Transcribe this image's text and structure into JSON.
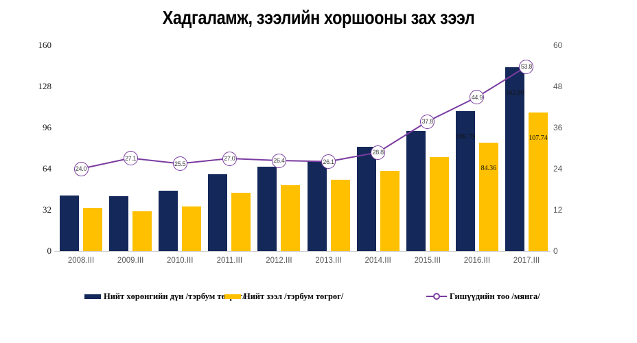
{
  "title": "Хадгаламж, зээлийн хоршооны зах зээл",
  "chart_data": {
    "type": "bar+line",
    "title": "Хадгаламж, зээлийн хоршооны зах зээл",
    "categories": [
      "2008.III",
      "2009.III",
      "2010.III",
      "2011.III",
      "2012.III",
      "2013.III",
      "2014.III",
      "2015.III",
      "2016.III",
      "2017.III"
    ],
    "left_axis": {
      "ticks": [
        0,
        32,
        64,
        96,
        128,
        160
      ],
      "max": 160,
      "min": 0
    },
    "right_axis": {
      "ticks": [
        0,
        12,
        24,
        36,
        48,
        60
      ],
      "max": 60,
      "min": 0
    },
    "grid": false,
    "legend_position": "bottom",
    "series": [
      {
        "name": "Нийт хөрөнгийн дүн /тэрбум төгрөг/",
        "type": "bar",
        "axis": "left",
        "color": "#14285a",
        "values": [
          43,
          42.5,
          47,
          60,
          65.5,
          70,
          81,
          93.5,
          108.78,
          142.8
        ],
        "labels": [
          null,
          null,
          null,
          null,
          null,
          null,
          null,
          null,
          "108.78",
          "142.80"
        ]
      },
      {
        "name": "Нийт зээл /тэрбум төгрөг/",
        "type": "bar",
        "axis": "left",
        "color": "#ffc000",
        "values": [
          33.4,
          31.1,
          34.8,
          45.6,
          51.3,
          55.6,
          62.5,
          73.1,
          84.36,
          107.74
        ],
        "labels": [
          null,
          null,
          null,
          null,
          null,
          null,
          null,
          null,
          "84.36",
          "107.74"
        ]
      },
      {
        "name": "Гишүүдийн тоо /мянга/",
        "type": "line",
        "axis": "right",
        "color": "#7a3ba0",
        "values": [
          24.0,
          27.1,
          25.5,
          27.0,
          26.4,
          26.1,
          28.8,
          37.8,
          44.9,
          53.8
        ],
        "labels": [
          "24.0",
          "27.1",
          "25.5",
          "27.0",
          "26.4",
          "26.1",
          "28.8",
          "37.8",
          "44.9",
          "53.8"
        ]
      }
    ]
  }
}
